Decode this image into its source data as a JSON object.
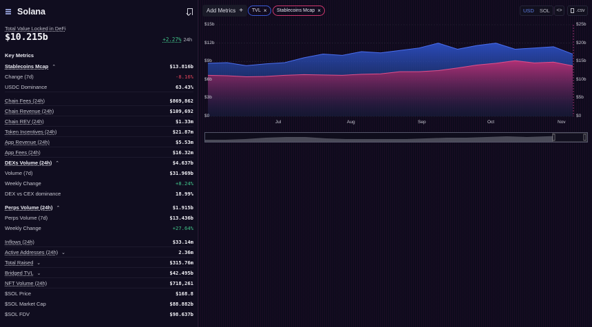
{
  "header": {
    "title": "Solana",
    "menu_icon": "menu-icon",
    "bookmark_icon": "bookmark-icon"
  },
  "tvl": {
    "label": "Total Value Locked in DeFi",
    "value": "$10.215b",
    "change": "+2.27%",
    "period": "24h"
  },
  "key_metrics": {
    "title": "Key Metrics",
    "rows": [
      {
        "label": "Stablecoins Mcap",
        "value": "$13.816b"
      },
      {
        "label": "Change (7d)",
        "value": "-8.16%"
      },
      {
        "label": "USDC Dominance",
        "value": "63.43%"
      },
      {
        "label": "Chain Fees (24h)",
        "value": "$869,862"
      },
      {
        "label": "Chain Revenue (24h)",
        "value": "$109,692"
      },
      {
        "label": "Chain REV (24h)",
        "value": "$1.33m"
      },
      {
        "label": "Token Incentives (24h)",
        "value": "$21.87m"
      },
      {
        "label": "App Revenue (24h)",
        "value": "$5.53m"
      },
      {
        "label": "App Fees (24h)",
        "value": "$16.32m"
      },
      {
        "label": "DEXs Volume (24h)",
        "value": "$4.637b"
      },
      {
        "label": "Volume (7d)",
        "value": "$31.969b"
      },
      {
        "label": "Weekly Change",
        "value": "+8.24%"
      },
      {
        "label": "DEX vs CEX dominance",
        "value": "18.99%"
      },
      {
        "label": "Perps Volume (24h)",
        "value": "$1.915b"
      },
      {
        "label": "Perps Volume (7d)",
        "value": "$13.436b"
      },
      {
        "label": "Weekly Change",
        "value": "+27.64%"
      },
      {
        "label": "Inflows (24h)",
        "value": "$33.14m"
      },
      {
        "label": "Active Addresses (24h)",
        "value": "2.36m"
      },
      {
        "label": "Total Raised",
        "value": "$315.76m"
      },
      {
        "label": "Bridged TVL",
        "value": "$42.495b"
      },
      {
        "label": "NFT Volume (24h)",
        "value": "$718,261"
      },
      {
        "label": "$SOL Price",
        "value": "$168.8"
      },
      {
        "label": "$SOL Market Cap",
        "value": "$88.882b"
      },
      {
        "label": "$SOL FDV",
        "value": "$98.637b"
      }
    ]
  },
  "toolbar": {
    "add_metrics": "Add Metrics",
    "plus": "+",
    "chips": [
      {
        "label": "TVL",
        "color": "#3b5bd8"
      },
      {
        "label": "Stablecoins Mcap",
        "color": "#d0386f"
      }
    ],
    "close": "×",
    "currency": {
      "usd": "USD",
      "sol": "SOL",
      "selected": "USD"
    },
    "embed": "<>",
    "csv": ".csv"
  },
  "chart_data": {
    "type": "area",
    "title": "",
    "x": [
      "Jun 15",
      "Jun 22",
      "Jul 1",
      "Jul 8",
      "Jul 15",
      "Jul 22",
      "Aug 1",
      "Aug 8",
      "Aug 15",
      "Aug 22",
      "Sep 1",
      "Sep 8",
      "Sep 15",
      "Sep 22",
      "Oct 1",
      "Oct 8",
      "Oct 15",
      "Oct 22",
      "Nov 1",
      "Nov 5"
    ],
    "x_ticks": [
      "Jul",
      "Aug",
      "Sep",
      "Oct",
      "Nov"
    ],
    "series": [
      {
        "name": "TVL",
        "color": "#3b5bd8",
        "axis": "left",
        "values": [
          8.7,
          8.8,
          8.3,
          8.6,
          8.8,
          9.6,
          10.2,
          10.0,
          10.6,
          10.4,
          10.8,
          11.2,
          12.0,
          11.0,
          11.6,
          12.0,
          11.0,
          11.2,
          11.4,
          10.2
        ]
      },
      {
        "name": "Stablecoins Mcap",
        "color": "#d0386f",
        "axis": "right",
        "values": [
          11.2,
          11.1,
          10.8,
          10.9,
          11.2,
          11.4,
          11.3,
          11.2,
          11.5,
          11.6,
          12.2,
          12.2,
          12.5,
          13.2,
          14.0,
          14.5,
          15.2,
          14.6,
          14.8,
          13.8
        ]
      }
    ],
    "yaxis_left": {
      "ticks": [
        "$0",
        "$3b",
        "$6b",
        "$9b",
        "$12b",
        "$15b"
      ],
      "range": [
        0,
        15
      ]
    },
    "yaxis_right": {
      "ticks": [
        "$0",
        "$5b",
        "$10b",
        "$15b",
        "$20b",
        "$25b"
      ],
      "range": [
        0,
        25
      ]
    },
    "grid": true,
    "legend": "chips in toolbar"
  }
}
